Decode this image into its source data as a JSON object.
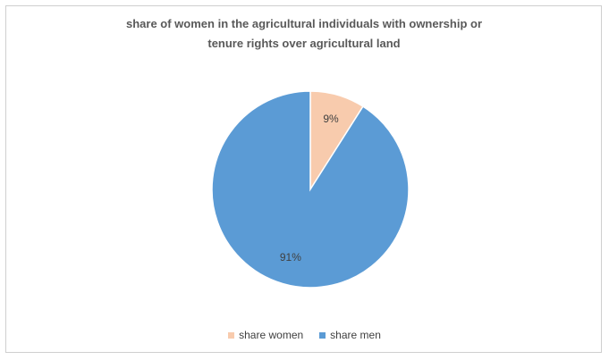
{
  "chart_data": {
    "type": "pie",
    "title_lines": [
      "share of women in the agricultural individuals with ownership or",
      "tenure rights over agricultural land"
    ],
    "categories": [
      "share women",
      "share men"
    ],
    "values": [
      9,
      91
    ],
    "data_labels": [
      "9%",
      "91%"
    ],
    "colors": [
      "#f8cbad",
      "#5b9bd5"
    ],
    "legend": "bottom",
    "start_angle_deg": 0
  }
}
